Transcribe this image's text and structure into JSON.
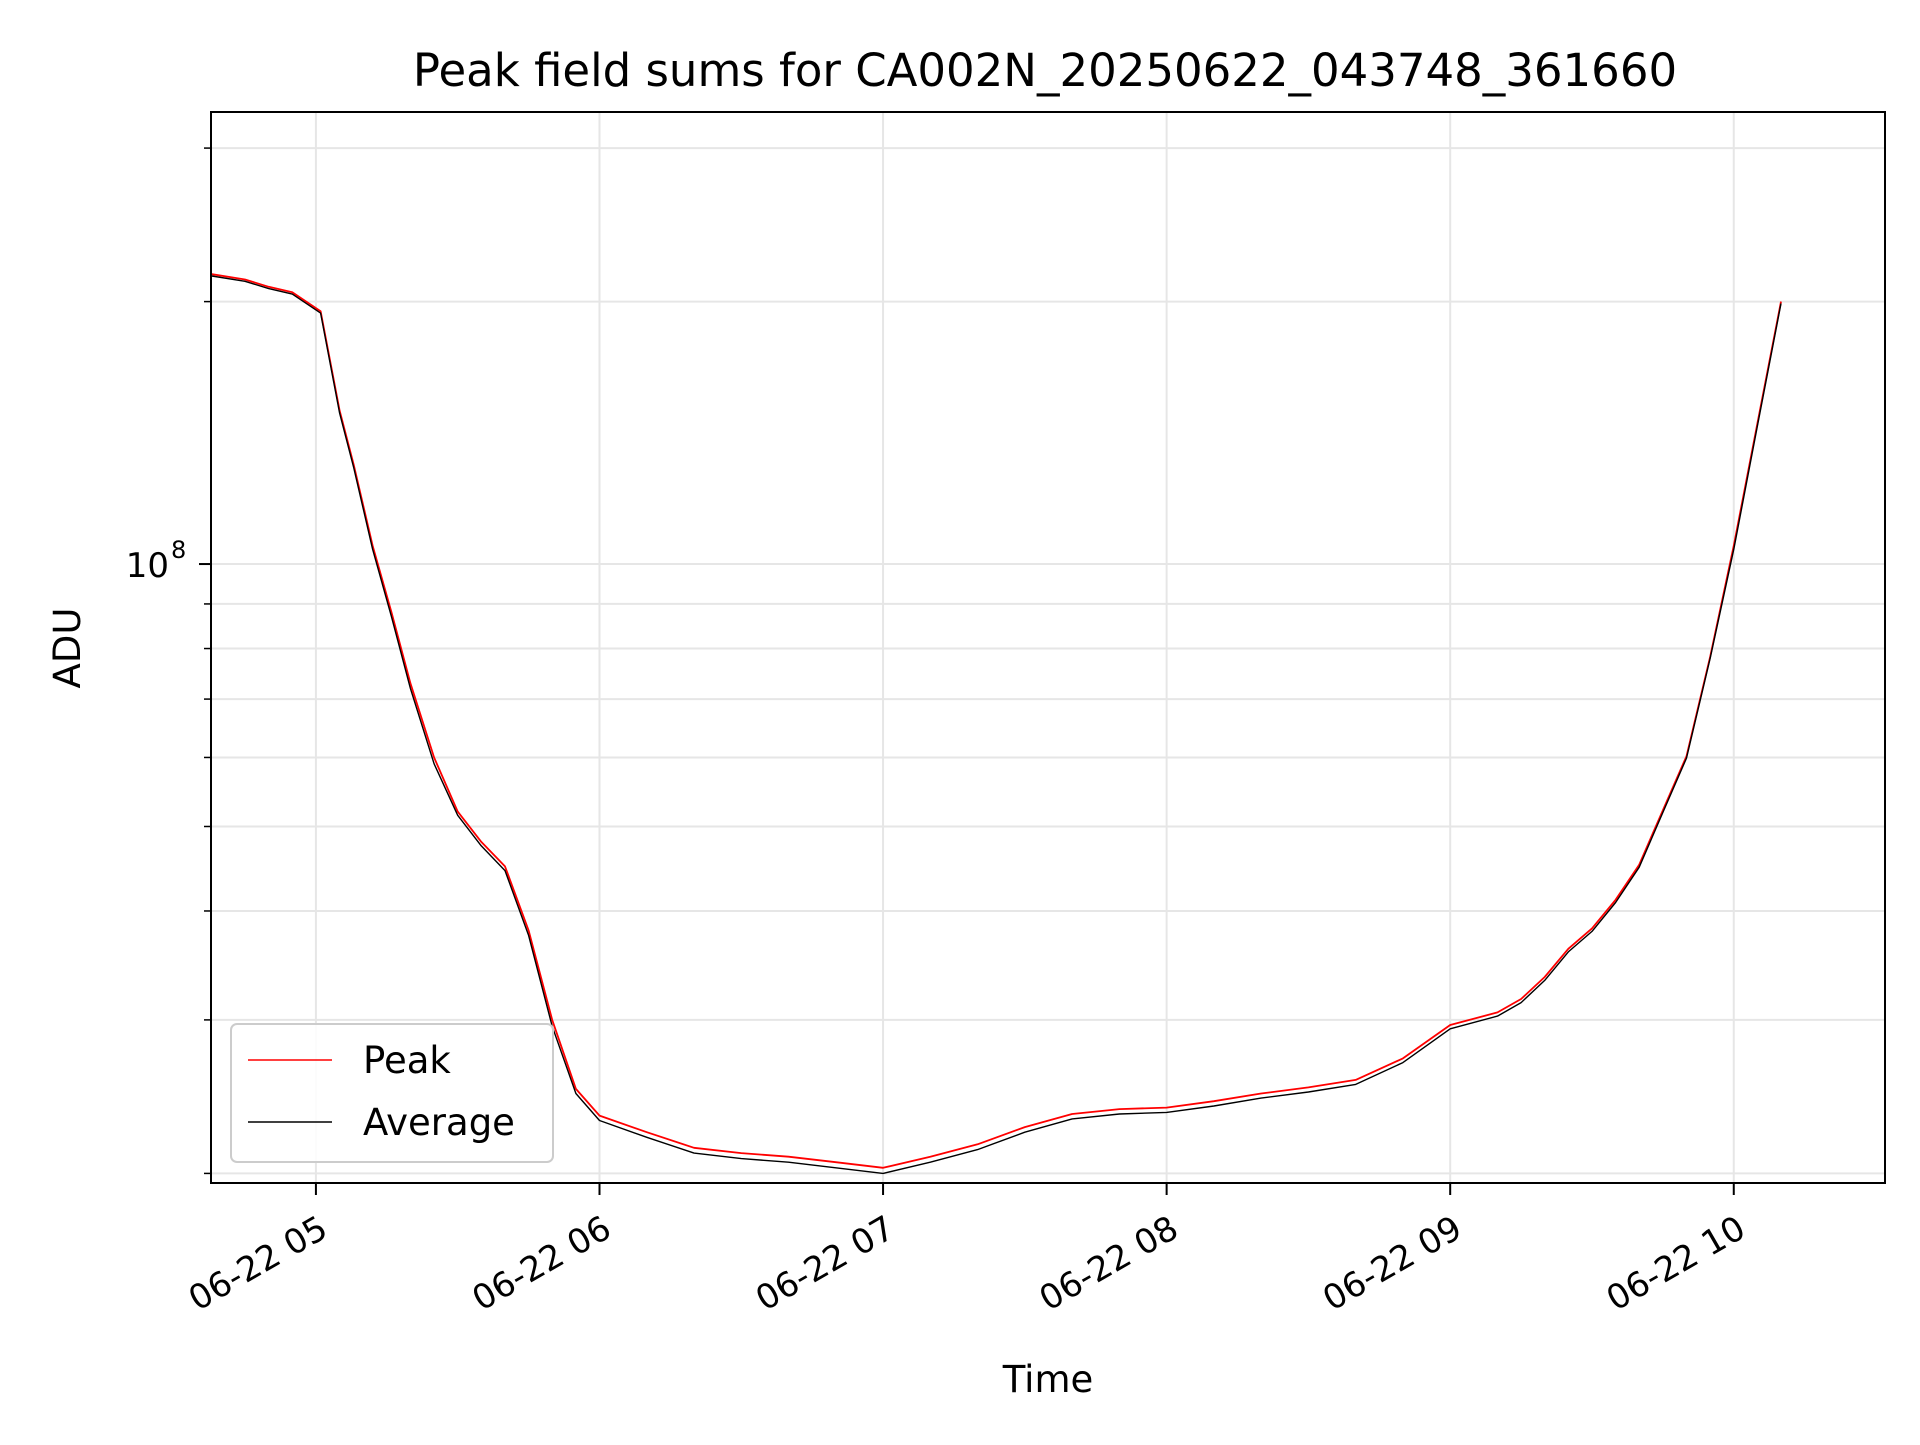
{
  "chart_data": {
    "type": "line",
    "title": "Peak field sums for CA002N_20250622_043748_361660",
    "xlabel": "Time",
    "ylabel": "ADU",
    "y_scale": "log",
    "ylim": [
      19500000,
      330000000
    ],
    "xlim": [
      "2025-06-22 04:37:48",
      "2025-06-22 10:32:00"
    ],
    "x_ticks": [
      {
        "value": "2025-06-22 05:00",
        "label": "06-22 05"
      },
      {
        "value": "2025-06-22 06:00",
        "label": "06-22 06"
      },
      {
        "value": "2025-06-22 07:00",
        "label": "06-22 07"
      },
      {
        "value": "2025-06-22 08:00",
        "label": "06-22 08"
      },
      {
        "value": "2025-06-22 09:00",
        "label": "06-22 09"
      },
      {
        "value": "2025-06-22 10:00",
        "label": "06-22 10"
      }
    ],
    "y_major_ticks": [
      {
        "value": 100000000,
        "base": "10",
        "exponent": "8"
      }
    ],
    "y_minor_ticks": [
      20000000,
      30000000,
      40000000,
      50000000,
      60000000,
      70000000,
      80000000,
      90000000,
      200000000,
      300000000
    ],
    "grid": true,
    "legend": {
      "placement": "lower-left",
      "entries": [
        "Peak",
        "Average"
      ]
    },
    "series": [
      {
        "name": "Peak",
        "color": "#ff0000",
        "x": [
          "2025-06-22 04:38",
          "2025-06-22 04:45",
          "2025-06-22 04:50",
          "2025-06-22 04:55",
          "2025-06-22 05:01",
          "2025-06-22 05:05",
          "2025-06-22 05:08",
          "2025-06-22 05:12",
          "2025-06-22 05:16",
          "2025-06-22 05:20",
          "2025-06-22 05:25",
          "2025-06-22 05:30",
          "2025-06-22 05:35",
          "2025-06-22 05:40",
          "2025-06-22 05:45",
          "2025-06-22 05:50",
          "2025-06-22 05:55",
          "2025-06-22 06:00",
          "2025-06-22 06:10",
          "2025-06-22 06:20",
          "2025-06-22 06:30",
          "2025-06-22 06:40",
          "2025-06-22 06:50",
          "2025-06-22 07:00",
          "2025-06-22 07:10",
          "2025-06-22 07:20",
          "2025-06-22 07:30",
          "2025-06-22 07:40",
          "2025-06-22 07:50",
          "2025-06-22 08:00",
          "2025-06-22 08:10",
          "2025-06-22 08:20",
          "2025-06-22 08:30",
          "2025-06-22 08:40",
          "2025-06-22 08:50",
          "2025-06-22 09:00",
          "2025-06-22 09:10",
          "2025-06-22 09:15",
          "2025-06-22 09:20",
          "2025-06-22 09:25",
          "2025-06-22 09:30",
          "2025-06-22 09:35",
          "2025-06-22 09:40",
          "2025-06-22 09:45",
          "2025-06-22 09:50",
          "2025-06-22 09:55",
          "2025-06-22 10:00",
          "2025-06-22 10:05",
          "2025-06-22 10:10"
        ],
        "values": [
          215000000,
          212000000,
          208000000,
          205000000,
          195000000,
          150000000,
          130000000,
          105000000,
          88000000,
          73000000,
          60000000,
          52000000,
          48000000,
          45000000,
          38000000,
          30000000,
          25000000,
          23300000,
          22300000,
          21400000,
          21100000,
          20900000,
          20600000,
          20300000,
          20900000,
          21600000,
          22600000,
          23400000,
          23700000,
          23800000,
          24200000,
          24700000,
          25100000,
          25600000,
          27100000,
          29600000,
          30600000,
          31700000,
          33600000,
          36200000,
          38200000,
          41200000,
          45200000,
          52200000,
          60200000,
          78200000,
          105000000,
          145000000,
          200000000
        ]
      },
      {
        "name": "Average",
        "color": "#000000",
        "x": [
          "2025-06-22 04:38",
          "2025-06-22 04:45",
          "2025-06-22 04:50",
          "2025-06-22 04:55",
          "2025-06-22 05:01",
          "2025-06-22 05:05",
          "2025-06-22 05:08",
          "2025-06-22 05:12",
          "2025-06-22 05:16",
          "2025-06-22 05:20",
          "2025-06-22 05:25",
          "2025-06-22 05:30",
          "2025-06-22 05:35",
          "2025-06-22 05:40",
          "2025-06-22 05:45",
          "2025-06-22 05:50",
          "2025-06-22 05:55",
          "2025-06-22 06:00",
          "2025-06-22 06:10",
          "2025-06-22 06:20",
          "2025-06-22 06:30",
          "2025-06-22 06:40",
          "2025-06-22 06:50",
          "2025-06-22 07:00",
          "2025-06-22 07:10",
          "2025-06-22 07:20",
          "2025-06-22 07:30",
          "2025-06-22 07:40",
          "2025-06-22 07:50",
          "2025-06-22 08:00",
          "2025-06-22 08:10",
          "2025-06-22 08:20",
          "2025-06-22 08:30",
          "2025-06-22 08:40",
          "2025-06-22 08:50",
          "2025-06-22 09:00",
          "2025-06-22 09:10",
          "2025-06-22 09:15",
          "2025-06-22 09:20",
          "2025-06-22 09:25",
          "2025-06-22 09:30",
          "2025-06-22 09:35",
          "2025-06-22 09:40",
          "2025-06-22 09:45",
          "2025-06-22 09:50",
          "2025-06-22 09:55",
          "2025-06-22 10:00",
          "2025-06-22 10:05",
          "2025-06-22 10:10"
        ],
        "values": [
          214000000,
          211000000,
          207000000,
          204000000,
          194000000,
          149000000,
          129000000,
          104000000,
          87000000,
          72000000,
          59000000,
          51500000,
          47500000,
          44500000,
          37500000,
          29500000,
          24700000,
          23000000,
          22000000,
          21100000,
          20800000,
          20600000,
          20300000,
          20000000,
          20600000,
          21300000,
          22300000,
          23100000,
          23400000,
          23500000,
          23900000,
          24400000,
          24800000,
          25300000,
          26800000,
          29300000,
          30300000,
          31400000,
          33300000,
          35900000,
          37900000,
          40900000,
          44900000,
          51900000,
          59900000,
          77900000,
          104000000,
          144000000,
          199000000
        ]
      }
    ]
  }
}
